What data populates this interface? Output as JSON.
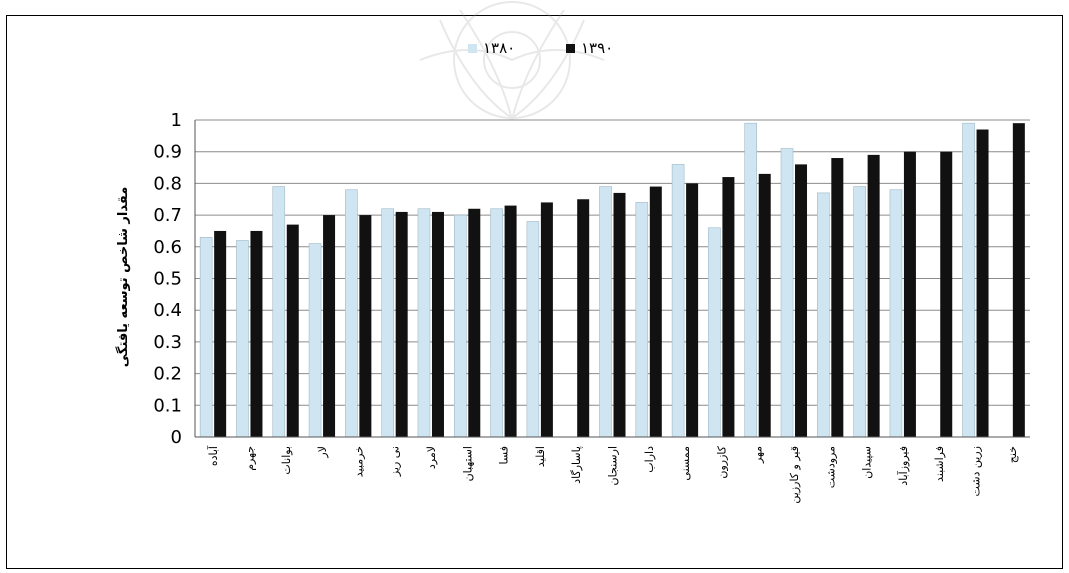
{
  "chart_data": {
    "type": "bar",
    "title": "",
    "xlabel": "",
    "ylabel": "مقدار شاخص توسعه یافتگی",
    "ylim": [
      0,
      1
    ],
    "yticks": [
      "0",
      "0.1",
      "0.2",
      "0.3",
      "0.4",
      "0.5",
      "0.6",
      "0.7",
      "0.8",
      "0.9",
      "1"
    ],
    "grid": true,
    "legend_position": "top",
    "categories": [
      "آباده",
      "جهرم",
      "بوانات",
      "لار",
      "خرمبید",
      "نی ریز",
      "لامرد",
      "استهبان",
      "فسا",
      "اقلید",
      "پاسارگاد",
      "ارسنجان",
      "داراب",
      "ممسنی",
      "کازرون",
      "مهر",
      "قیر و کارزین",
      "مرودشت",
      "سپیدان",
      "فیروزآباد",
      "فراشبند",
      "زرین دشت",
      "خنج"
    ],
    "series": [
      {
        "name": "۱۳۸۰",
        "color": "#cfe6f2",
        "values": [
          0.63,
          0.62,
          0.79,
          0.61,
          0.78,
          0.72,
          0.72,
          0.7,
          0.72,
          0.68,
          null,
          0.79,
          0.74,
          0.86,
          0.66,
          0.99,
          0.91,
          0.77,
          0.79,
          0.78,
          null,
          0.99,
          null
        ]
      },
      {
        "name": "۱۳۹۰",
        "color": "#111111",
        "values": [
          0.65,
          0.65,
          0.67,
          0.7,
          0.7,
          0.71,
          0.71,
          0.72,
          0.73,
          0.74,
          0.75,
          0.77,
          0.79,
          0.8,
          0.82,
          0.83,
          0.86,
          0.88,
          0.89,
          0.9,
          0.9,
          0.97,
          0.99
        ]
      }
    ]
  }
}
